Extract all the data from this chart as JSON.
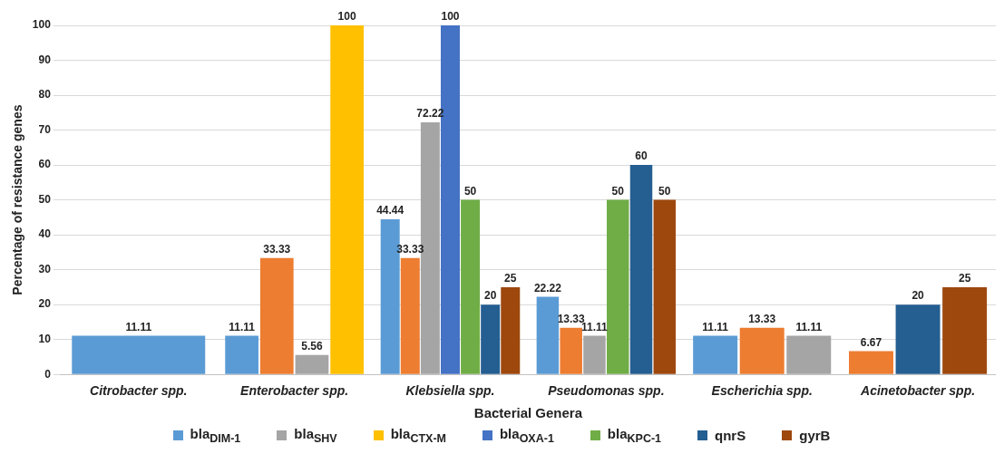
{
  "chart_data": {
    "type": "bar",
    "xlabel": "Bacterial Genera",
    "ylabel": "Percentage of resistance genes",
    "categories": [
      "Citrobacter spp.",
      "Enterobacter spp.",
      "Klebsiella spp.",
      "Pseudomonas spp.",
      "Escherichia spp.",
      "Acinetobacter spp."
    ],
    "series": [
      {
        "name": "bla$_{DIM-1}$",
        "color": "#5b9bd5",
        "values": [
          11.11,
          11.11,
          44.44,
          22.22,
          11.11,
          null
        ]
      },
      {
        "color": "#ed7d31",
        "values": [
          null,
          33.33,
          33.33,
          13.33,
          13.33,
          6.67
        ]
      },
      {
        "name": "bla$_{SHV}$",
        "color": "#a5a5a5",
        "values": [
          null,
          5.56,
          72.22,
          11.11,
          11.11,
          null
        ]
      },
      {
        "name": "bla$_{CTX-M}$",
        "color": "#ffc000",
        "values": [
          null,
          100,
          null,
          null,
          null,
          null
        ]
      },
      {
        "name": "bla$_{OXA-1}$",
        "color": "#4472c4",
        "values": [
          null,
          null,
          100,
          null,
          null,
          null
        ]
      },
      {
        "name": "bla$_{KPC-1}$",
        "color": "#70ad47",
        "values": [
          null,
          null,
          50,
          50,
          null,
          null
        ]
      },
      {
        "name": "qnrS",
        "color": "#255e91",
        "values": [
          null,
          null,
          20,
          60,
          null,
          20
        ]
      },
      {
        "name": "gyrB",
        "color": "#9e480e",
        "values": [
          null,
          null,
          25,
          50,
          null,
          25
        ]
      }
    ],
    "ylim": [
      0,
      100
    ],
    "yticks": [
      0,
      10,
      20,
      30,
      40,
      50,
      60,
      70,
      80,
      90,
      100
    ],
    "grid": "y",
    "legend": "bottom",
    "data_labels": true
  }
}
